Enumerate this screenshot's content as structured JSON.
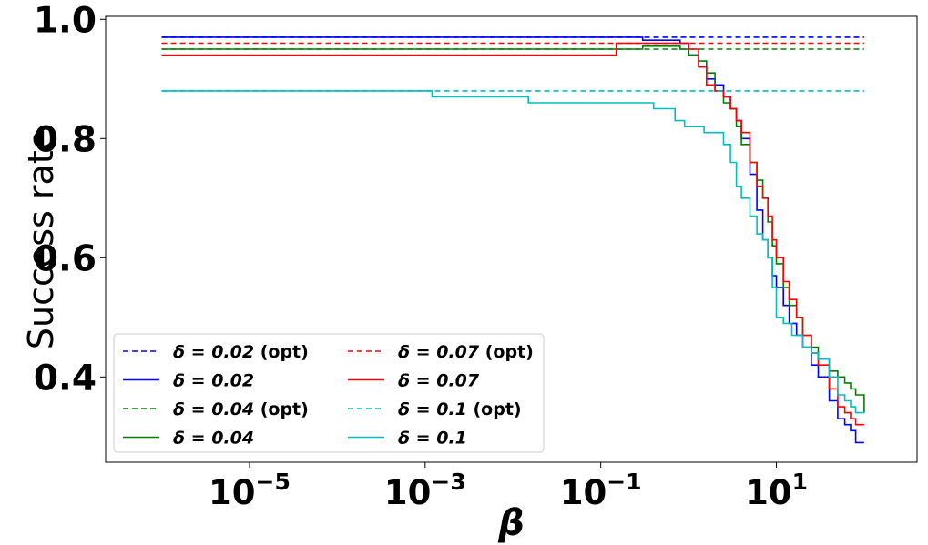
{
  "chart_data": {
    "type": "line",
    "xlabel": "β",
    "ylabel": "Success rate",
    "xscale": "log",
    "xlim": [
      2.3e-07,
      400
    ],
    "ylim": [
      0.257,
      1.005
    ],
    "x_ticks": [
      {
        "value": 1e-05,
        "base": "10",
        "exp": "−5"
      },
      {
        "value": 0.001,
        "base": "10",
        "exp": "−3"
      },
      {
        "value": 0.1,
        "base": "10",
        "exp": "−1"
      },
      {
        "value": 10,
        "base": "10",
        "exp": "1"
      }
    ],
    "y_ticks": [
      {
        "value": 0.4,
        "label": "0.4"
      },
      {
        "value": 0.6,
        "label": "0.6"
      },
      {
        "value": 0.8,
        "label": "0.8"
      },
      {
        "value": 1.0,
        "label": "1.0"
      }
    ],
    "grid": false,
    "legend": {
      "placement": "lower-left",
      "columns": 2
    },
    "series": [
      {
        "name": "δ = 0.02 (opt)",
        "legend_delta": "δ = 0.02",
        "legend_suffix": " (opt)",
        "color": "#0000ff",
        "dash": true,
        "x": [
          1e-06,
          100
        ],
        "y": [
          0.97,
          0.97
        ]
      },
      {
        "name": "δ = 0.02",
        "legend_delta": "δ = 0.02",
        "legend_suffix": "",
        "color": "#0000ff",
        "dash": false,
        "x": [
          1e-06,
          0.2,
          0.3,
          0.5,
          0.8,
          1.0,
          1.3,
          1.6,
          2.0,
          2.5,
          3.0,
          3.5,
          4.0,
          5.0,
          6.0,
          7.0,
          8.0,
          9.0,
          10,
          12,
          14,
          17,
          20,
          25,
          30,
          40,
          50,
          60,
          70,
          80,
          100
        ],
        "y": [
          0.97,
          0.97,
          0.965,
          0.965,
          0.96,
          0.94,
          0.92,
          0.9,
          0.89,
          0.87,
          0.85,
          0.83,
          0.8,
          0.74,
          0.68,
          0.63,
          0.6,
          0.57,
          0.55,
          0.52,
          0.49,
          0.47,
          0.45,
          0.42,
          0.4,
          0.36,
          0.33,
          0.32,
          0.31,
          0.29,
          0.29
        ]
      },
      {
        "name": "δ = 0.04 (opt)",
        "legend_delta": "δ = 0.04",
        "legend_suffix": " (opt)",
        "color": "#008000",
        "dash": true,
        "x": [
          1e-06,
          100
        ],
        "y": [
          0.95,
          0.95
        ]
      },
      {
        "name": "δ = 0.04",
        "legend_delta": "δ = 0.04",
        "legend_suffix": "",
        "color": "#008000",
        "dash": false,
        "x": [
          1e-06,
          0.2,
          0.3,
          0.5,
          0.8,
          1.0,
          1.3,
          1.6,
          2.0,
          2.5,
          3.0,
          3.5,
          4.0,
          5.0,
          6.0,
          7.0,
          8.0,
          9.0,
          10,
          12,
          14,
          17,
          20,
          25,
          30,
          40,
          50,
          60,
          70,
          80,
          100
        ],
        "y": [
          0.95,
          0.95,
          0.955,
          0.955,
          0.95,
          0.94,
          0.93,
          0.91,
          0.88,
          0.86,
          0.85,
          0.82,
          0.79,
          0.76,
          0.73,
          0.7,
          0.66,
          0.62,
          0.59,
          0.55,
          0.52,
          0.5,
          0.47,
          0.45,
          0.43,
          0.41,
          0.4,
          0.39,
          0.38,
          0.37,
          0.34
        ]
      },
      {
        "name": "δ = 0.07 (opt)",
        "legend_delta": "δ = 0.07",
        "legend_suffix": " (opt)",
        "color": "#ff0000",
        "dash": true,
        "x": [
          1e-06,
          100
        ],
        "y": [
          0.96,
          0.96
        ]
      },
      {
        "name": "δ = 0.07",
        "legend_delta": "δ = 0.07",
        "legend_suffix": "",
        "color": "#ff0000",
        "dash": false,
        "x": [
          1e-06,
          0.1,
          0.15,
          0.5,
          0.8,
          1.0,
          1.3,
          1.6,
          2.0,
          2.5,
          3.0,
          3.5,
          4.0,
          5.0,
          6.0,
          7.0,
          8.0,
          9.0,
          10,
          12,
          14,
          17,
          20,
          25,
          30,
          40,
          50,
          60,
          70,
          80,
          100
        ],
        "y": [
          0.94,
          0.94,
          0.96,
          0.96,
          0.96,
          0.95,
          0.92,
          0.89,
          0.88,
          0.87,
          0.85,
          0.83,
          0.81,
          0.76,
          0.72,
          0.7,
          0.67,
          0.63,
          0.6,
          0.56,
          0.53,
          0.5,
          0.47,
          0.44,
          0.42,
          0.38,
          0.35,
          0.34,
          0.33,
          0.32,
          0.32
        ]
      },
      {
        "name": "δ = 0.1 (opt)",
        "legend_delta": "δ = 0.1",
        "legend_suffix": " (opt)",
        "color": "#00bfbf",
        "dash": true,
        "x": [
          1e-06,
          100
        ],
        "y": [
          0.88,
          0.88
        ]
      },
      {
        "name": "δ = 0.1",
        "legend_delta": "δ = 0.1",
        "legend_suffix": "",
        "color": "#00bfbf",
        "dash": false,
        "x": [
          1e-06,
          0.001,
          0.0012,
          0.01,
          0.015,
          0.3,
          0.4,
          0.7,
          0.9,
          1.0,
          1.2,
          1.5,
          2.0,
          2.5,
          3.0,
          3.5,
          4.0,
          5.0,
          6.0,
          7.0,
          8.0,
          9.0,
          10,
          12,
          15,
          20,
          25,
          30,
          40,
          50,
          60,
          70,
          80,
          100
        ],
        "y": [
          0.88,
          0.88,
          0.87,
          0.87,
          0.86,
          0.86,
          0.85,
          0.83,
          0.82,
          0.82,
          0.82,
          0.81,
          0.81,
          0.79,
          0.76,
          0.72,
          0.7,
          0.67,
          0.64,
          0.63,
          0.6,
          0.55,
          0.5,
          0.49,
          0.47,
          0.45,
          0.44,
          0.43,
          0.4,
          0.37,
          0.36,
          0.35,
          0.34,
          0.34
        ]
      }
    ]
  }
}
